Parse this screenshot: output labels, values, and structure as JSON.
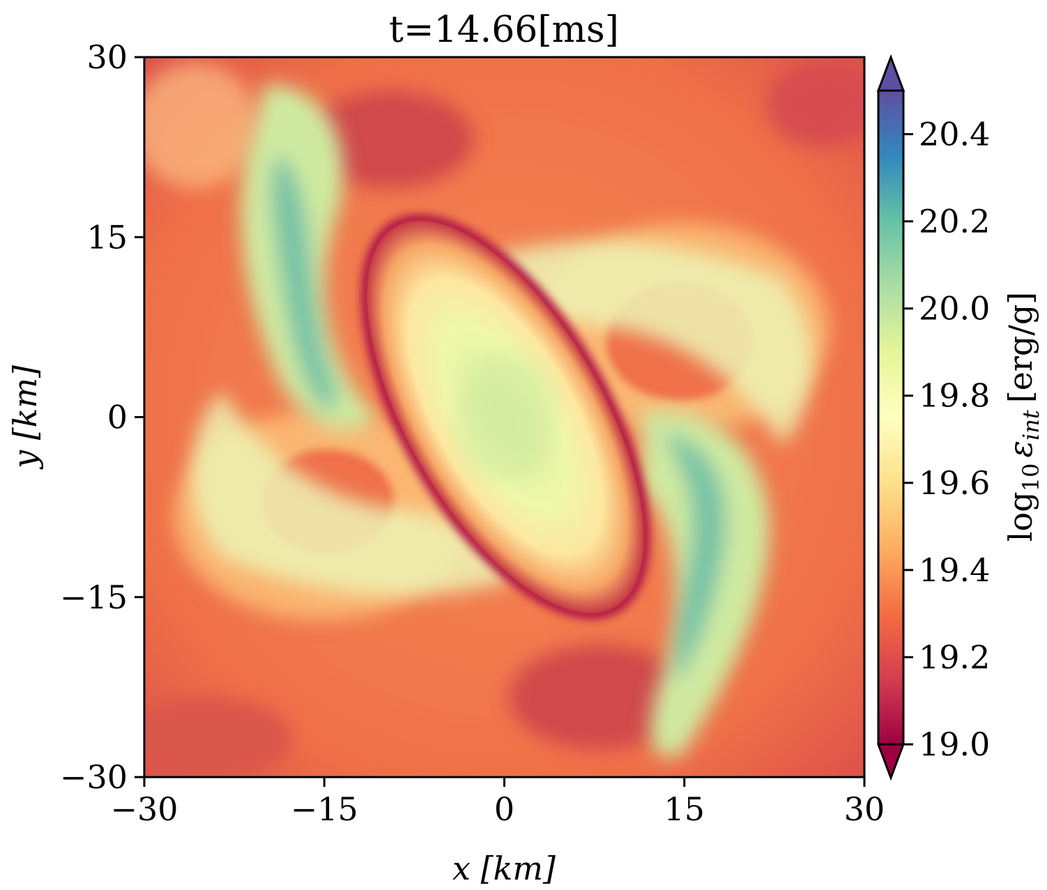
{
  "chart_data": {
    "type": "heatmap",
    "title": "t=14.66[ms]",
    "xlabel": "x [km]",
    "ylabel": "y [km]",
    "xlim": [
      -30,
      30
    ],
    "ylim": [
      -30,
      30
    ],
    "xticks": [
      -30,
      -15,
      0,
      15,
      30
    ],
    "yticks": [
      -30,
      -15,
      0,
      15,
      30
    ],
    "xtick_labels": [
      "−30",
      "−15",
      "0",
      "15",
      "30"
    ],
    "ytick_labels": [
      "−30",
      "−15",
      "0",
      "15",
      "30"
    ],
    "colorbar": {
      "label": "log10 εint [erg/g]",
      "label_parts": {
        "base": "log",
        "sub": "10",
        "symbol": "ε",
        "symbol_sub": "int",
        "unit": "[erg/g]"
      },
      "range": [
        19.0,
        20.5
      ],
      "extend": "both",
      "colormap": "Spectral",
      "ticks": [
        19.0,
        19.2,
        19.4,
        19.6,
        19.8,
        20.0,
        20.2,
        20.4
      ],
      "tick_labels": [
        "19.0",
        "19.2",
        "19.4",
        "19.6",
        "19.8",
        "20.0",
        "20.2",
        "20.4"
      ]
    },
    "field_description_regions": [
      {
        "name": "background",
        "value": 19.3
      },
      {
        "name": "central-core",
        "value": 19.9
      },
      {
        "name": "spiral-arms",
        "value": 20.15
      },
      {
        "name": "shock-rim",
        "value": 19.05
      }
    ]
  },
  "colors": {
    "spectral_stops": [
      "#9e0142",
      "#d53e4f",
      "#f46d43",
      "#fdae61",
      "#fee08b",
      "#ffffbf",
      "#e6f598",
      "#abdda4",
      "#66c2a5",
      "#3288bd",
      "#5e4fa2"
    ]
  }
}
